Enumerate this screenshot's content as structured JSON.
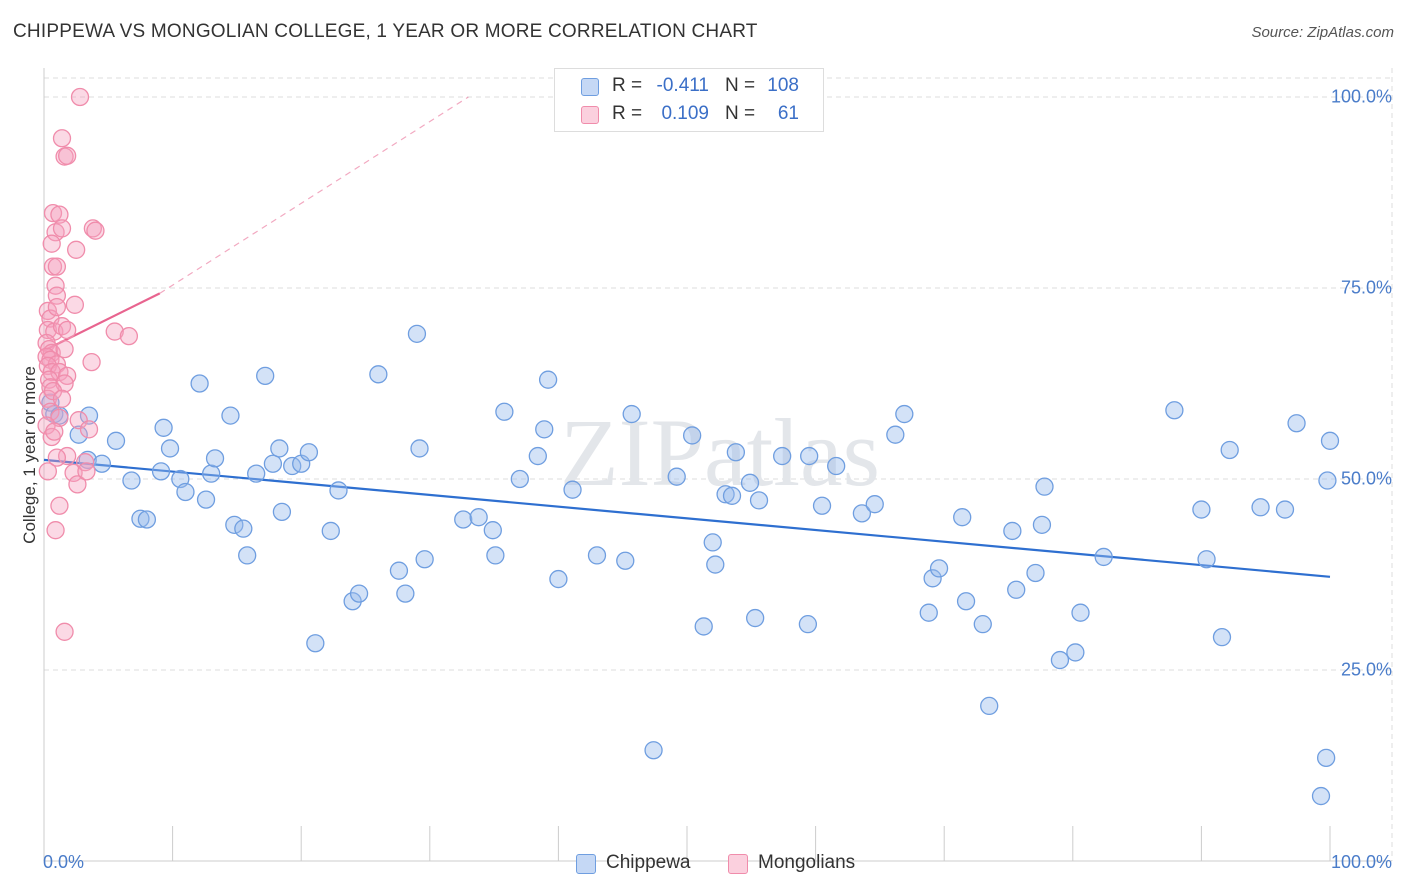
{
  "title": "CHIPPEWA VS MONGOLIAN COLLEGE, 1 YEAR OR MORE CORRELATION CHART",
  "source": "Source: ZipAtlas.com",
  "watermark": "ZIPatlas",
  "chart_data": {
    "type": "scatter",
    "title": "CHIPPEWA VS MONGOLIAN COLLEGE, 1 YEAR OR MORE CORRELATION CHART",
    "xlabel": "",
    "ylabel": "College, 1 year or more",
    "xlim": [
      0,
      100
    ],
    "ylim": [
      0,
      100
    ],
    "x_tick_labels": [
      "0.0%",
      "100.0%"
    ],
    "y_tick_labels": [
      "100.0%",
      "75.0%",
      "50.0%",
      "25.0%"
    ],
    "y_ticks": [
      100,
      75,
      50,
      25
    ],
    "grid": true,
    "legend_position": "bottom",
    "colors": {
      "chippewa": "#6f9ee0",
      "mongolians": "#f08cab",
      "chippewa_line": "#2e6fd0",
      "mongolians_line": "#e8648f"
    },
    "stats": [
      {
        "r_label": "R =",
        "r_value": "-0.411",
        "n_label": "N =",
        "n_value": "108"
      },
      {
        "r_label": "R =",
        "r_value": "0.109",
        "n_label": "N =",
        "n_value": "61"
      }
    ],
    "series": [
      {
        "name": "Chippewa",
        "trend": {
          "x": [
            0,
            100
          ],
          "y": [
            52.5,
            37.2
          ]
        },
        "points": [
          [
            0.5,
            60.0
          ],
          [
            0.8,
            58.5
          ],
          [
            1.2,
            58.3
          ],
          [
            2.7,
            55.8
          ],
          [
            3.5,
            58.3
          ],
          [
            3.4,
            52.5
          ],
          [
            4.5,
            52.0
          ],
          [
            5.6,
            55.0
          ],
          [
            6.8,
            49.8
          ],
          [
            7.5,
            44.8
          ],
          [
            8.0,
            44.7
          ],
          [
            9.1,
            51.0
          ],
          [
            9.3,
            56.7
          ],
          [
            9.8,
            54.0
          ],
          [
            10.6,
            50.0
          ],
          [
            11.0,
            48.3
          ],
          [
            12.1,
            62.5
          ],
          [
            12.6,
            47.3
          ],
          [
            13.0,
            50.7
          ],
          [
            13.3,
            52.7
          ],
          [
            14.5,
            58.3
          ],
          [
            14.8,
            44.0
          ],
          [
            15.5,
            43.5
          ],
          [
            15.8,
            40.0
          ],
          [
            16.5,
            50.7
          ],
          [
            17.2,
            63.5
          ],
          [
            17.8,
            52.0
          ],
          [
            18.3,
            54.0
          ],
          [
            18.5,
            45.7
          ],
          [
            19.3,
            51.7
          ],
          [
            20.0,
            52.0
          ],
          [
            20.6,
            53.5
          ],
          [
            21.1,
            28.5
          ],
          [
            22.3,
            43.2
          ],
          [
            22.9,
            48.5
          ],
          [
            24.0,
            34.0
          ],
          [
            24.5,
            35.0
          ],
          [
            26.0,
            63.7
          ],
          [
            27.6,
            38.0
          ],
          [
            28.1,
            35.0
          ],
          [
            29.0,
            69.0
          ],
          [
            29.2,
            54.0
          ],
          [
            29.6,
            39.5
          ],
          [
            32.6,
            44.7
          ],
          [
            33.8,
            45.0
          ],
          [
            34.9,
            43.3
          ],
          [
            35.1,
            40.0
          ],
          [
            35.8,
            58.8
          ],
          [
            37.0,
            50.0
          ],
          [
            38.4,
            53.0
          ],
          [
            38.9,
            56.5
          ],
          [
            39.2,
            63.0
          ],
          [
            40.0,
            36.9
          ],
          [
            41.1,
            48.6
          ],
          [
            43.0,
            40.0
          ],
          [
            45.2,
            39.3
          ],
          [
            45.7,
            58.5
          ],
          [
            47.4,
            14.5
          ],
          [
            49.2,
            50.3
          ],
          [
            50.4,
            55.7
          ],
          [
            51.3,
            30.7
          ],
          [
            52.0,
            41.7
          ],
          [
            52.2,
            38.8
          ],
          [
            53.0,
            48.0
          ],
          [
            53.5,
            47.8
          ],
          [
            53.8,
            53.5
          ],
          [
            54.9,
            49.5
          ],
          [
            55.3,
            31.8
          ],
          [
            55.6,
            47.2
          ],
          [
            57.4,
            53.0
          ],
          [
            59.4,
            31.0
          ],
          [
            59.5,
            53.0
          ],
          [
            60.5,
            46.5
          ],
          [
            61.6,
            51.7
          ],
          [
            63.6,
            45.5
          ],
          [
            64.6,
            46.7
          ],
          [
            66.2,
            55.8
          ],
          [
            66.9,
            58.5
          ],
          [
            68.8,
            32.5
          ],
          [
            69.1,
            37.0
          ],
          [
            69.6,
            38.3
          ],
          [
            71.4,
            45.0
          ],
          [
            71.7,
            34.0
          ],
          [
            73.0,
            31.0
          ],
          [
            73.5,
            20.3
          ],
          [
            75.3,
            43.2
          ],
          [
            75.6,
            35.5
          ],
          [
            77.1,
            37.7
          ],
          [
            77.6,
            44.0
          ],
          [
            77.8,
            49.0
          ],
          [
            79.0,
            26.3
          ],
          [
            80.2,
            27.3
          ],
          [
            80.6,
            32.5
          ],
          [
            82.4,
            39.8
          ],
          [
            87.9,
            59.0
          ],
          [
            90.0,
            46.0
          ],
          [
            90.4,
            39.5
          ],
          [
            91.6,
            29.3
          ],
          [
            92.2,
            53.8
          ],
          [
            94.6,
            46.3
          ],
          [
            96.5,
            46.0
          ],
          [
            97.4,
            57.3
          ],
          [
            99.8,
            49.8
          ],
          [
            99.3,
            8.5
          ],
          [
            99.7,
            13.5
          ],
          [
            100.0,
            55.0
          ]
        ]
      },
      {
        "name": "Mongolians",
        "trend": {
          "x": [
            0,
            9
          ],
          "y": [
            66.8,
            74.3
          ]
        },
        "trend_extension": {
          "x": [
            9,
            33
          ],
          "y": [
            74.3,
            100
          ]
        },
        "points": [
          [
            2.8,
            100.0
          ],
          [
            1.4,
            94.6
          ],
          [
            1.6,
            92.2
          ],
          [
            1.8,
            92.3
          ],
          [
            0.7,
            84.8
          ],
          [
            1.2,
            84.6
          ],
          [
            0.9,
            82.3
          ],
          [
            1.4,
            82.8
          ],
          [
            3.8,
            82.8
          ],
          [
            4.0,
            82.5
          ],
          [
            0.6,
            80.8
          ],
          [
            2.5,
            80.0
          ],
          [
            0.7,
            77.8
          ],
          [
            1.0,
            77.8
          ],
          [
            0.9,
            75.3
          ],
          [
            1.0,
            74.0
          ],
          [
            0.3,
            72.0
          ],
          [
            0.5,
            71.0
          ],
          [
            1.0,
            72.5
          ],
          [
            2.4,
            72.8
          ],
          [
            0.3,
            69.5
          ],
          [
            0.8,
            69.3
          ],
          [
            1.4,
            70.0
          ],
          [
            1.8,
            69.5
          ],
          [
            5.5,
            69.3
          ],
          [
            6.6,
            68.7
          ],
          [
            0.2,
            67.8
          ],
          [
            0.4,
            67.0
          ],
          [
            0.6,
            66.5
          ],
          [
            1.6,
            67.0
          ],
          [
            0.2,
            66.0
          ],
          [
            0.5,
            65.6
          ],
          [
            1.0,
            65.0
          ],
          [
            0.3,
            64.8
          ],
          [
            3.7,
            65.3
          ],
          [
            0.6,
            64.0
          ],
          [
            1.2,
            64.0
          ],
          [
            0.4,
            63.0
          ],
          [
            1.8,
            63.5
          ],
          [
            0.5,
            62.0
          ],
          [
            1.6,
            62.5
          ],
          [
            0.3,
            60.5
          ],
          [
            0.7,
            61.5
          ],
          [
            1.4,
            60.5
          ],
          [
            0.5,
            58.8
          ],
          [
            1.2,
            58.0
          ],
          [
            2.7,
            57.7
          ],
          [
            0.2,
            57.0
          ],
          [
            3.5,
            56.5
          ],
          [
            0.6,
            55.5
          ],
          [
            1.8,
            53.0
          ],
          [
            1.0,
            52.8
          ],
          [
            0.3,
            51.0
          ],
          [
            3.2,
            52.2
          ],
          [
            2.3,
            50.8
          ],
          [
            2.6,
            49.3
          ],
          [
            3.3,
            51.0
          ],
          [
            1.2,
            46.5
          ],
          [
            0.9,
            43.3
          ],
          [
            1.6,
            30.0
          ],
          [
            0.8,
            56.2
          ]
        ]
      }
    ]
  },
  "legend": {
    "items": [
      "Chippewa",
      "Mongolians"
    ]
  }
}
